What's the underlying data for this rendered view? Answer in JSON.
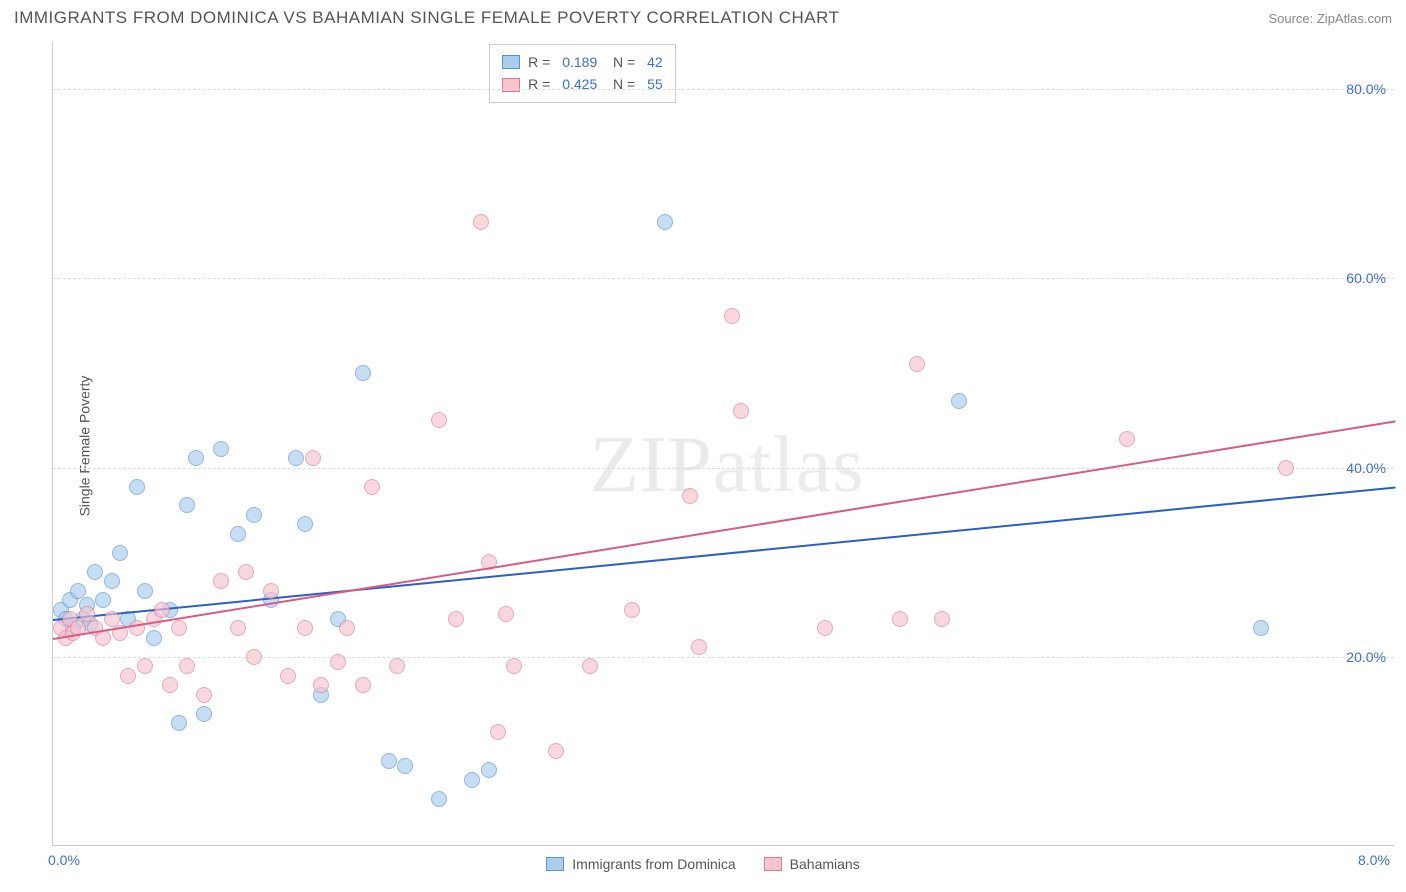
{
  "header": {
    "title": "IMMIGRANTS FROM DOMINICA VS BAHAMIAN SINGLE FEMALE POVERTY CORRELATION CHART",
    "source": "Source: ZipAtlas.com"
  },
  "chart": {
    "type": "scatter",
    "ylabel": "Single Female Poverty",
    "xlim": [
      0.0,
      8.0
    ],
    "ylim": [
      0.0,
      85.0
    ],
    "xticks": [
      {
        "pos": 0.0,
        "label": "0.0%"
      },
      {
        "pos": 8.0,
        "label": "8.0%"
      }
    ],
    "yticks": [
      {
        "pos": 20.0,
        "label": "20.0%"
      },
      {
        "pos": 40.0,
        "label": "40.0%"
      },
      {
        "pos": 60.0,
        "label": "60.0%"
      },
      {
        "pos": 80.0,
        "label": "80.0%"
      }
    ],
    "background_color": "#ffffff",
    "grid_color": "#dddddd",
    "axis_color": "#cccccc",
    "point_radius": 8,
    "point_opacity": 0.65,
    "series": [
      {
        "name": "Immigrants from Dominica",
        "fill": "#a9cdee",
        "stroke": "#5b8fd6",
        "trend_color": "#2b5fc8",
        "r": 0.189,
        "n": 42,
        "trend": {
          "x0": 0.0,
          "y0": 24.0,
          "x1": 8.0,
          "y1": 38.0
        },
        "points": [
          [
            0.05,
            25
          ],
          [
            0.08,
            24
          ],
          [
            0.1,
            26
          ],
          [
            0.12,
            23
          ],
          [
            0.15,
            27
          ],
          [
            0.18,
            24
          ],
          [
            0.2,
            25.5
          ],
          [
            0.22,
            23.5
          ],
          [
            0.25,
            29
          ],
          [
            0.3,
            26
          ],
          [
            0.35,
            28
          ],
          [
            0.4,
            31
          ],
          [
            0.45,
            24
          ],
          [
            0.5,
            38
          ],
          [
            0.55,
            27
          ],
          [
            0.6,
            22
          ],
          [
            0.7,
            25
          ],
          [
            0.75,
            13
          ],
          [
            0.8,
            36
          ],
          [
            0.85,
            41
          ],
          [
            0.9,
            14
          ],
          [
            1.0,
            42
          ],
          [
            1.1,
            33
          ],
          [
            1.2,
            35
          ],
          [
            1.3,
            26
          ],
          [
            1.45,
            41
          ],
          [
            1.5,
            34
          ],
          [
            1.6,
            16
          ],
          [
            1.7,
            24
          ],
          [
            1.85,
            50
          ],
          [
            2.0,
            9
          ],
          [
            2.1,
            8.5
          ],
          [
            2.3,
            5
          ],
          [
            2.5,
            7
          ],
          [
            2.6,
            8
          ],
          [
            3.65,
            66
          ],
          [
            5.4,
            47
          ],
          [
            7.2,
            23
          ]
        ]
      },
      {
        "name": "Bahamians",
        "fill": "#f6c3cf",
        "stroke": "#d77d96",
        "trend_color": "#d85a85",
        "r": 0.425,
        "n": 55,
        "trend": {
          "x0": 0.0,
          "y0": 22.0,
          "x1": 8.0,
          "y1": 45.0
        },
        "points": [
          [
            0.05,
            23
          ],
          [
            0.08,
            22
          ],
          [
            0.1,
            24
          ],
          [
            0.12,
            22.5
          ],
          [
            0.15,
            23
          ],
          [
            0.2,
            24.5
          ],
          [
            0.25,
            23
          ],
          [
            0.3,
            22
          ],
          [
            0.35,
            24
          ],
          [
            0.4,
            22.5
          ],
          [
            0.45,
            18
          ],
          [
            0.5,
            23
          ],
          [
            0.55,
            19
          ],
          [
            0.6,
            24
          ],
          [
            0.65,
            25
          ],
          [
            0.7,
            17
          ],
          [
            0.75,
            23
          ],
          [
            0.8,
            19
          ],
          [
            0.9,
            16
          ],
          [
            1.0,
            28
          ],
          [
            1.1,
            23
          ],
          [
            1.15,
            29
          ],
          [
            1.2,
            20
          ],
          [
            1.3,
            27
          ],
          [
            1.4,
            18
          ],
          [
            1.5,
            23
          ],
          [
            1.55,
            41
          ],
          [
            1.6,
            17
          ],
          [
            1.7,
            19.5
          ],
          [
            1.75,
            23
          ],
          [
            1.85,
            17
          ],
          [
            1.9,
            38
          ],
          [
            2.05,
            19
          ],
          [
            2.3,
            45
          ],
          [
            2.4,
            24
          ],
          [
            2.55,
            66
          ],
          [
            2.6,
            30
          ],
          [
            2.65,
            12
          ],
          [
            2.7,
            24.5
          ],
          [
            2.75,
            19
          ],
          [
            3.0,
            10
          ],
          [
            3.2,
            19
          ],
          [
            3.45,
            25
          ],
          [
            3.8,
            37
          ],
          [
            3.85,
            21
          ],
          [
            4.05,
            56
          ],
          [
            4.1,
            46
          ],
          [
            4.6,
            23
          ],
          [
            5.05,
            24
          ],
          [
            5.15,
            51
          ],
          [
            5.3,
            24
          ],
          [
            6.4,
            43
          ],
          [
            7.35,
            40
          ]
        ]
      }
    ],
    "watermark": "ZIPatlas",
    "legend_bottom": [
      {
        "label": "Immigrants from Dominica",
        "fill": "#a9cdee",
        "stroke": "#5b8fd6"
      },
      {
        "label": "Bahamians",
        "fill": "#f6c3cf",
        "stroke": "#d77d96"
      }
    ]
  }
}
